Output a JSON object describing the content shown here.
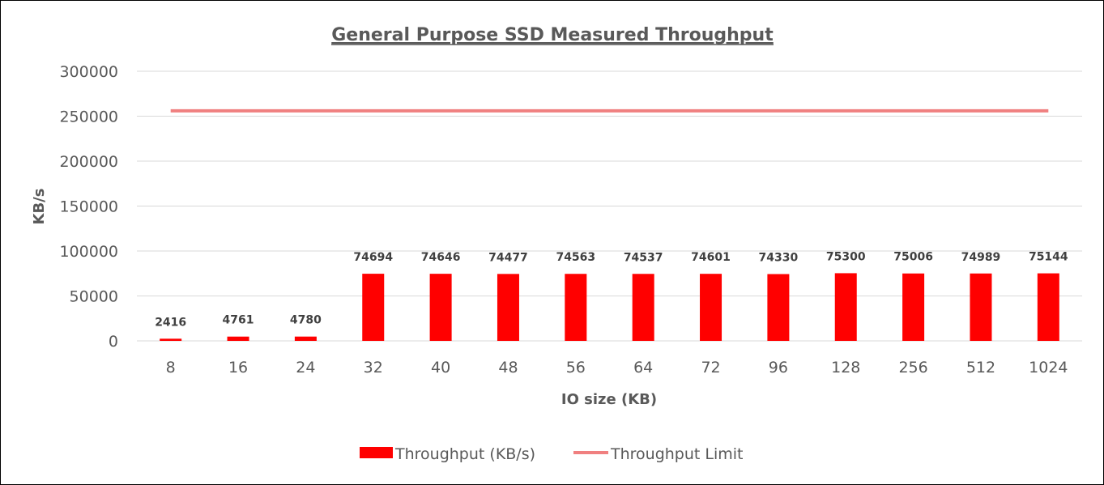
{
  "chart_data": {
    "type": "bar",
    "title": "General Purpose SSD Measured Throughput",
    "xlabel": "IO size (KB)",
    "ylabel": "KB/s",
    "ylim": [
      0,
      300000
    ],
    "yticks": [
      0,
      50000,
      100000,
      150000,
      200000,
      250000,
      300000
    ],
    "categories": [
      "8",
      "16",
      "24",
      "32",
      "40",
      "48",
      "56",
      "64",
      "72",
      "96",
      "128",
      "256",
      "512",
      "1024"
    ],
    "series": [
      {
        "name": "Throughput (KB/s)",
        "type": "bar",
        "color": "#ff0000",
        "values": [
          2416,
          4761,
          4780,
          74694,
          74646,
          74477,
          74563,
          74537,
          74601,
          74330,
          75300,
          75006,
          74989,
          75144
        ],
        "data_labels": true
      },
      {
        "name": "Throughput Limit",
        "type": "line",
        "color": "#f08080",
        "values": [
          256000,
          256000,
          256000,
          256000,
          256000,
          256000,
          256000,
          256000,
          256000,
          256000,
          256000,
          256000,
          256000,
          256000
        ]
      }
    ],
    "grid": true,
    "legend": "bottom"
  }
}
